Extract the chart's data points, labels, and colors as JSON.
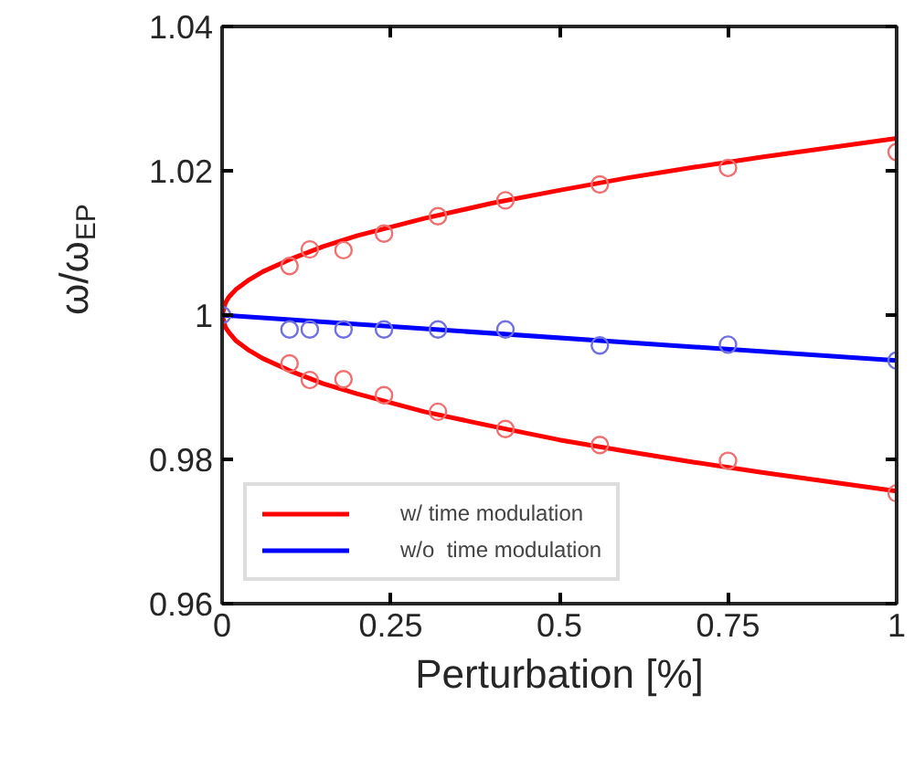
{
  "chart_data": {
    "type": "line",
    "xlabel": "Perturbation [%]",
    "ylabel": "ω/ω$_{EP}$",
    "xlim": [
      0,
      1
    ],
    "ylim": [
      0.96,
      1.04
    ],
    "xticks": [
      0,
      0.25,
      0.5,
      0.75,
      1
    ],
    "yticks": [
      0.96,
      0.98,
      1,
      1.02,
      1.04
    ],
    "legend": "bottom left",
    "grid": false,
    "line_style": "solid",
    "series": [
      {
        "name": "w/ time modulation",
        "color": "#ff0000",
        "x": [
          0,
          0.005,
          0.01,
          0.02,
          0.04,
          0.06,
          0.1,
          0.15,
          0.2,
          0.3,
          0.4,
          0.5,
          0.6,
          0.7,
          0.8,
          0.9,
          1
        ],
        "values": [
          1,
          1.0017,
          1.0025,
          1.0035,
          1.0049,
          1.006,
          1.0077,
          1.0095,
          1.011,
          1.0134,
          1.0155,
          1.0173,
          1.019,
          1.0205,
          1.0219,
          1.0232,
          1.0245
        ]
      },
      {
        "color": "#ff0000",
        "x": [
          0,
          0.005,
          0.01,
          0.02,
          0.04,
          0.06,
          0.1,
          0.15,
          0.2,
          0.3,
          0.4,
          0.5,
          0.6,
          0.7,
          0.8,
          0.9,
          1
        ],
        "values": [
          1,
          0.9983,
          0.9976,
          0.9965,
          0.9951,
          0.994,
          0.9923,
          0.9905,
          0.9891,
          0.9866,
          0.9846,
          0.9827,
          0.9811,
          0.9796,
          0.9782,
          0.9769,
          0.9756
        ]
      },
      {
        "name": "w/o  time modulation",
        "color": "#0000ff",
        "x": [
          0,
          1
        ],
        "values": [
          1,
          0.9937
        ]
      },
      {
        "type": "scatter",
        "marker": "circle",
        "color": "#f07070",
        "x": [
          0.1,
          0.13,
          0.18,
          0.24,
          0.32,
          0.42,
          0.56,
          0.75,
          1
        ],
        "values": [
          1.0068,
          1.0091,
          1.009,
          1.0113,
          1.0137,
          1.0159,
          1.0181,
          1.0204,
          1.0226
        ]
      },
      {
        "type": "scatter",
        "marker": "circle",
        "color": "#f07070",
        "x": [
          0.1,
          0.13,
          0.18,
          0.24,
          0.32,
          0.42,
          0.56,
          0.75,
          1
        ],
        "values": [
          0.9933,
          0.991,
          0.9911,
          0.9889,
          0.9866,
          0.9842,
          0.982,
          0.9798,
          0.9753
        ]
      },
      {
        "type": "scatter",
        "marker": "circle",
        "color": "#7070e0",
        "x": [
          0,
          0.1,
          0.13,
          0.18,
          0.24,
          0.32,
          0.42,
          0.56,
          0.75,
          1
        ],
        "values": [
          1,
          0.998,
          0.998,
          0.998,
          0.998,
          0.998,
          0.998,
          0.9958,
          0.9959,
          0.9937
        ]
      }
    ]
  }
}
